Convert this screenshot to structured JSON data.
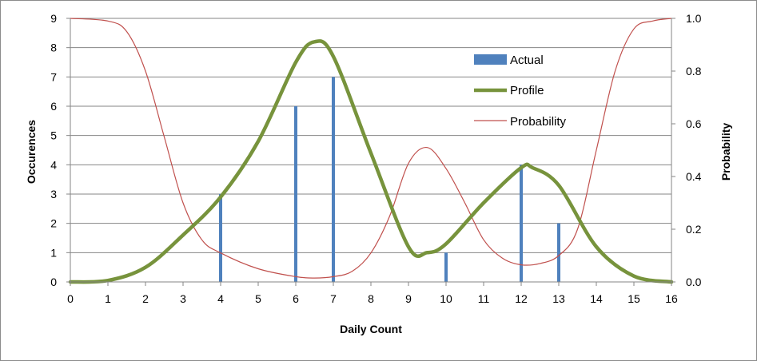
{
  "chart_data": {
    "type": "bar+line",
    "title": "",
    "xlabel": "Daily Count",
    "ylabel_left": "Occurences",
    "ylabel_right": "Probability",
    "xlim": [
      0,
      16
    ],
    "ylim_left": [
      0,
      9
    ],
    "ylim_right": [
      0,
      1.0
    ],
    "x_ticks": [
      "0",
      "1",
      "2",
      "3",
      "4",
      "5",
      "6",
      "7",
      "8",
      "9",
      "10",
      "11",
      "12",
      "13",
      "14",
      "15",
      "16"
    ],
    "y_left_ticks": [
      "0",
      "1",
      "2",
      "3",
      "4",
      "5",
      "6",
      "7",
      "8",
      "9"
    ],
    "y_right_ticks": [
      "0.0",
      "0.2",
      "0.4",
      "0.6",
      "0.8",
      "1.0"
    ],
    "grid": "horizontal",
    "legend_position": "top-right-inside",
    "colors": {
      "actual": "#4f81bd",
      "profile": "#77933c",
      "probability": "#c0504d",
      "grid": "#868686"
    },
    "series": [
      {
        "name": "Actual",
        "kind": "bar",
        "axis": "left",
        "x": [
          4,
          6,
          7,
          10,
          12,
          13
        ],
        "values": [
          3,
          6,
          7,
          1,
          4,
          2
        ]
      },
      {
        "name": "Profile",
        "kind": "line",
        "axis": "left",
        "x": [
          0,
          1,
          2,
          3,
          4,
          5,
          6,
          6.5,
          7,
          8,
          9,
          9.5,
          10,
          11,
          12,
          12.3,
          13,
          14,
          15,
          16
        ],
        "values": [
          0,
          0.05,
          0.5,
          1.6,
          2.9,
          4.8,
          7.5,
          8.2,
          7.7,
          4.4,
          1.2,
          1.0,
          1.3,
          2.7,
          3.9,
          3.9,
          3.3,
          1.2,
          0.2,
          0
        ]
      },
      {
        "name": "Probability",
        "kind": "line",
        "axis": "right",
        "x": [
          0,
          1,
          1.5,
          2,
          2.5,
          3,
          3.5,
          4,
          5,
          6,
          6.5,
          7,
          7.5,
          8,
          8.5,
          9,
          9.5,
          10,
          10.5,
          11,
          11.5,
          12,
          12.5,
          13,
          13.5,
          14,
          14.5,
          15,
          15.5,
          16
        ],
        "values": [
          1.0,
          0.99,
          0.95,
          0.8,
          0.55,
          0.3,
          0.16,
          0.11,
          0.05,
          0.02,
          0.015,
          0.02,
          0.04,
          0.11,
          0.25,
          0.45,
          0.51,
          0.43,
          0.3,
          0.16,
          0.09,
          0.065,
          0.07,
          0.1,
          0.2,
          0.5,
          0.8,
          0.96,
          0.99,
          1.0
        ]
      }
    ]
  }
}
